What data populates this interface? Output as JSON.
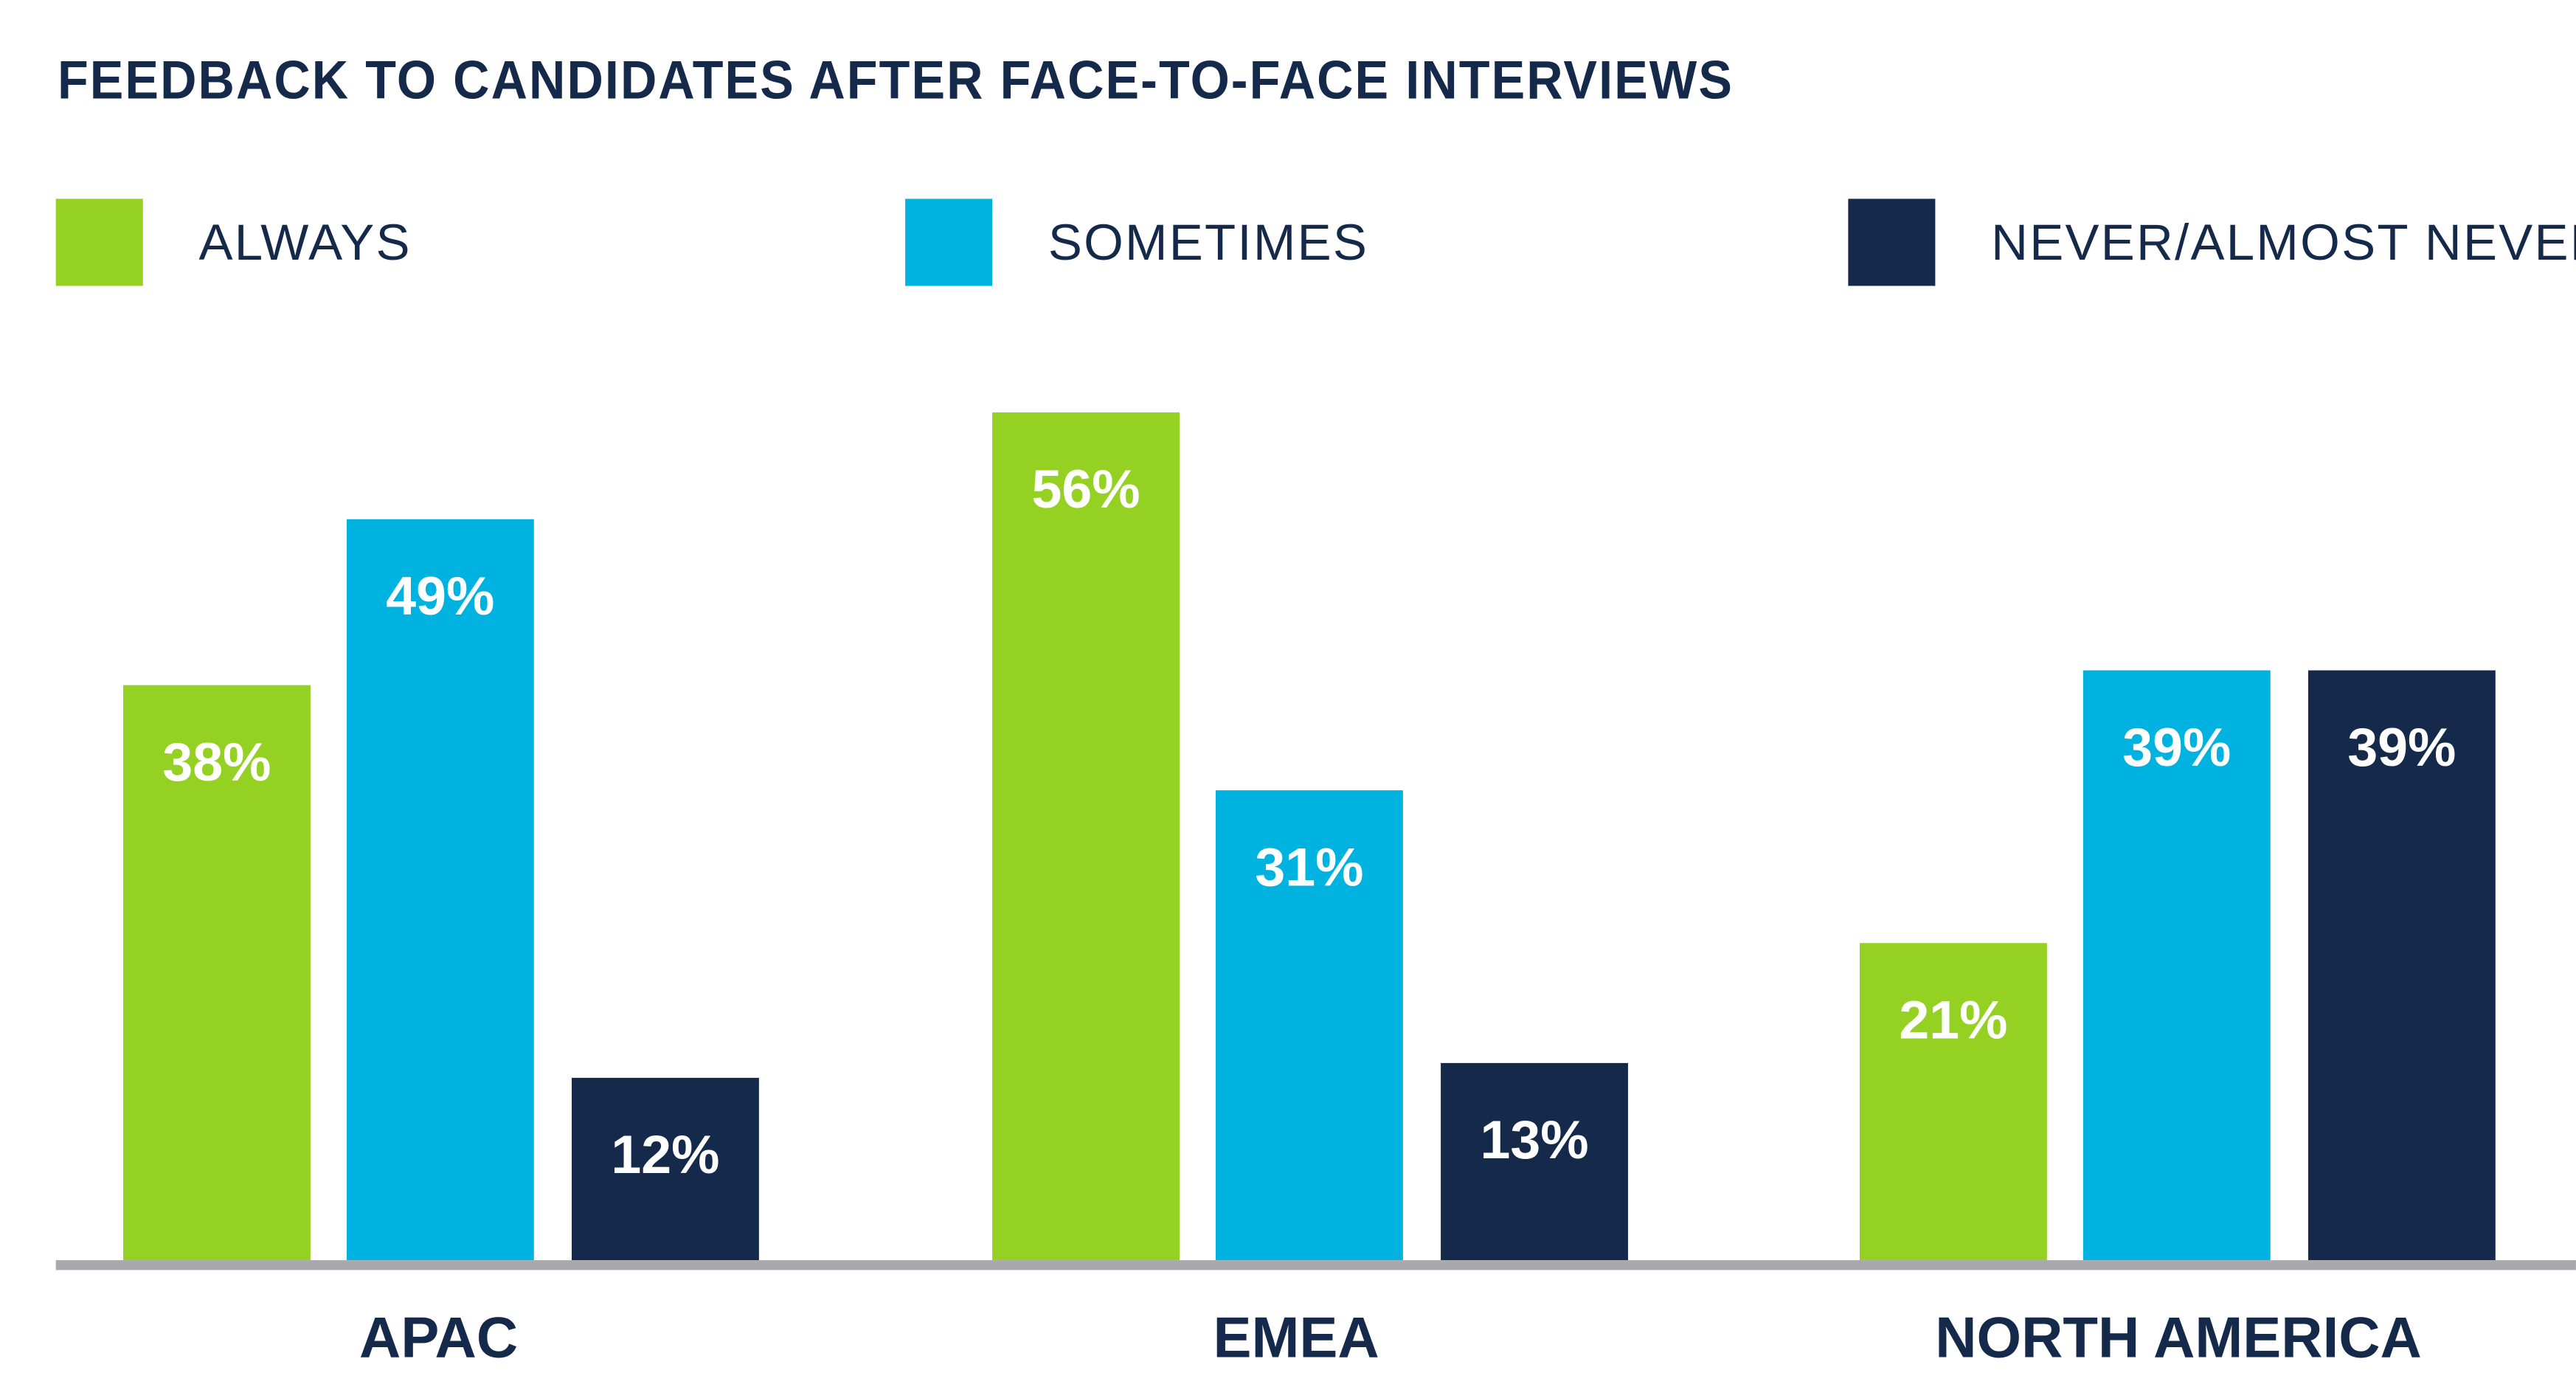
{
  "chart_data": {
    "type": "bar",
    "title": "FEEDBACK TO CANDIDATES AFTER FACE-TO-FACE INTERVIEWS",
    "categories": [
      "APAC",
      "EMEA",
      "NORTH AMERICA"
    ],
    "series": [
      {
        "name": "ALWAYS",
        "color": "#95d123",
        "values": [
          38,
          56,
          21
        ],
        "labels": [
          "38%",
          "56%",
          "21%"
        ]
      },
      {
        "name": "SOMETIMES",
        "color": "#00b2e0",
        "values": [
          49,
          31,
          39
        ],
        "labels": [
          "49%",
          "31%",
          "39%"
        ]
      },
      {
        "name": "NEVER/ALMOST NEVER",
        "color": "#15294a",
        "values": [
          12,
          13,
          39
        ],
        "labels": [
          "12%",
          "13%",
          "39%"
        ]
      }
    ],
    "xlabel": "",
    "ylabel": "",
    "ylim": [
      0,
      56
    ],
    "grid": false,
    "legend": "top"
  }
}
